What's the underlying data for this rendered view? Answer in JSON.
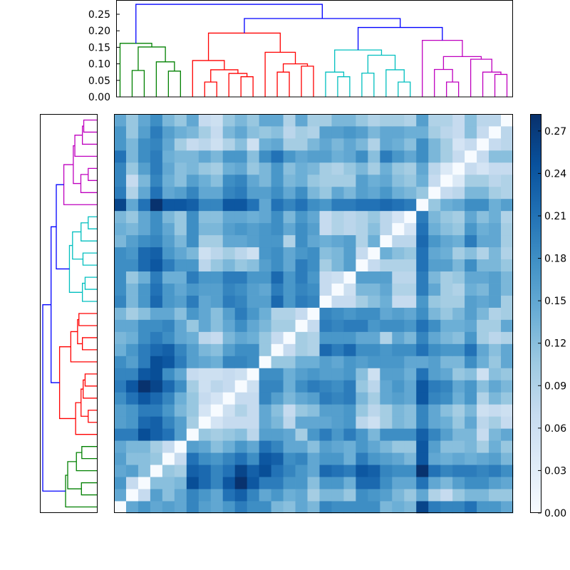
{
  "chart_data": {
    "type": "heatmap",
    "title": "",
    "description_kind": "clustered distance matrix with dendrograms",
    "n_leaves": 33,
    "colormap": "Blues",
    "vmin": 0.0,
    "vmax": 0.282,
    "colorbar_ticks": [
      "0.00",
      "0.03",
      "0.06",
      "0.09",
      "0.12",
      "0.15",
      "0.18",
      "0.21",
      "0.24",
      "0.27"
    ],
    "dendrogram_axis_ticks": [
      "0.00",
      "0.05",
      "0.10",
      "0.15",
      "0.20",
      "0.25"
    ],
    "dendrogram_ylim": [
      0,
      0.293
    ],
    "cluster_colors": {
      "green": "#008000",
      "red": "#ff0000",
      "cyan": "#00bfbf",
      "magenta": "#bf00bf",
      "above_threshold": "#0000ff"
    },
    "linkage": [
      [
        1,
        2,
        0.08,
        "green"
      ],
      [
        4,
        5,
        0.078,
        "green"
      ],
      [
        3,
        34,
        0.106,
        "green"
      ],
      [
        33,
        35,
        0.151,
        "green"
      ],
      [
        0,
        36,
        0.162,
        "green"
      ],
      [
        7,
        8,
        0.045,
        "red"
      ],
      [
        10,
        11,
        0.061,
        "red"
      ],
      [
        9,
        39,
        0.071,
        "red"
      ],
      [
        38,
        40,
        0.082,
        "red"
      ],
      [
        6,
        41,
        0.11,
        "red"
      ],
      [
        13,
        14,
        0.075,
        "red"
      ],
      [
        15,
        16,
        0.093,
        "red"
      ],
      [
        43,
        44,
        0.1,
        "red"
      ],
      [
        12,
        45,
        0.135,
        "red"
      ],
      [
        42,
        46,
        0.193,
        "red"
      ],
      [
        18,
        19,
        0.061,
        "cyan"
      ],
      [
        17,
        48,
        0.075,
        "cyan"
      ],
      [
        20,
        21,
        0.072,
        "cyan"
      ],
      [
        23,
        24,
        0.045,
        "cyan"
      ],
      [
        22,
        51,
        0.082,
        "cyan"
      ],
      [
        50,
        52,
        0.126,
        "cyan"
      ],
      [
        49,
        53,
        0.142,
        "cyan"
      ],
      [
        27,
        28,
        0.045,
        "magenta"
      ],
      [
        26,
        55,
        0.083,
        "magenta"
      ],
      [
        31,
        32,
        0.068,
        "magenta"
      ],
      [
        30,
        57,
        0.075,
        "magenta"
      ],
      [
        29,
        58,
        0.114,
        "magenta"
      ],
      [
        56,
        59,
        0.122,
        "magenta"
      ],
      [
        25,
        60,
        0.171,
        "magenta"
      ],
      [
        54,
        61,
        0.21,
        "above_threshold"
      ],
      [
        47,
        62,
        0.237,
        "above_threshold"
      ],
      [
        37,
        63,
        0.28,
        "above_threshold"
      ]
    ],
    "matrix": [
      [
        0,
        0.15,
        0.17,
        0.15,
        0.16,
        0.15,
        0.19,
        0.16,
        0.15,
        0.17,
        0.2,
        0.18,
        0.18,
        0.13,
        0.12,
        0.15,
        0.13,
        0.19,
        0.18,
        0.18,
        0.18,
        0.18,
        0.13,
        0.14,
        0.13,
        0.26,
        0.2,
        0.19,
        0.19,
        0.21,
        0.17,
        0.17,
        0.15
      ],
      [
        0.15,
        0,
        0.07,
        0.16,
        0.12,
        0.15,
        0.19,
        0.17,
        0.15,
        0.21,
        0.23,
        0.19,
        0.15,
        0.17,
        0.14,
        0.15,
        0.1,
        0.13,
        0.13,
        0.11,
        0.18,
        0.17,
        0.16,
        0.13,
        0.11,
        0.15,
        0.09,
        0.07,
        0.11,
        0.13,
        0.13,
        0.11,
        0.11
      ],
      [
        0.17,
        0.07,
        0,
        0.12,
        0.12,
        0.13,
        0.25,
        0.22,
        0.19,
        0.24,
        0.28,
        0.24,
        0.2,
        0.2,
        0.17,
        0.17,
        0.12,
        0.17,
        0.17,
        0.14,
        0.22,
        0.22,
        0.18,
        0.15,
        0.15,
        0.21,
        0.15,
        0.13,
        0.16,
        0.18,
        0.18,
        0.16,
        0.15
      ],
      [
        0.15,
        0.16,
        0.12,
        0,
        0.11,
        0.1,
        0.23,
        0.22,
        0.19,
        0.21,
        0.26,
        0.23,
        0.25,
        0.21,
        0.19,
        0.17,
        0.15,
        0.22,
        0.21,
        0.2,
        0.24,
        0.23,
        0.19,
        0.18,
        0.18,
        0.28,
        0.21,
        0.19,
        0.2,
        0.2,
        0.19,
        0.2,
        0.18
      ],
      [
        0.16,
        0.12,
        0.12,
        0.11,
        0,
        0.07,
        0.21,
        0.18,
        0.17,
        0.19,
        0.21,
        0.18,
        0.24,
        0.23,
        0.18,
        0.19,
        0.15,
        0.17,
        0.17,
        0.14,
        0.2,
        0.17,
        0.16,
        0.15,
        0.13,
        0.24,
        0.15,
        0.14,
        0.15,
        0.14,
        0.15,
        0.16,
        0.13
      ],
      [
        0.15,
        0.13,
        0.13,
        0.1,
        0.07,
        0,
        0.16,
        0.15,
        0.12,
        0.14,
        0.17,
        0.15,
        0.21,
        0.19,
        0.15,
        0.15,
        0.12,
        0.16,
        0.15,
        0.14,
        0.17,
        0.15,
        0.13,
        0.11,
        0.11,
        0.24,
        0.16,
        0.12,
        0.12,
        0.13,
        0.1,
        0.14,
        0.11
      ],
      [
        0.2,
        0.2,
        0.25,
        0.23,
        0.21,
        0.16,
        0,
        0.11,
        0.1,
        0.11,
        0.12,
        0.08,
        0.16,
        0.16,
        0.15,
        0.1,
        0.17,
        0.2,
        0.17,
        0.2,
        0.17,
        0.13,
        0.18,
        0.18,
        0.18,
        0.23,
        0.19,
        0.16,
        0.13,
        0.13,
        0.07,
        0.13,
        0.15
      ],
      [
        0.16,
        0.17,
        0.22,
        0.23,
        0.19,
        0.16,
        0.1,
        0,
        0.05,
        0.07,
        0.07,
        0.07,
        0.15,
        0.13,
        0.08,
        0.15,
        0.15,
        0.15,
        0.16,
        0.17,
        0.08,
        0.06,
        0.1,
        0.13,
        0.12,
        0.19,
        0.15,
        0.14,
        0.11,
        0.15,
        0.08,
        0.1,
        0.07
      ],
      [
        0.16,
        0.17,
        0.2,
        0.2,
        0.17,
        0.13,
        0.11,
        0.05,
        0,
        0.06,
        0.09,
        0.07,
        0.15,
        0.12,
        0.07,
        0.11,
        0.12,
        0.16,
        0.16,
        0.17,
        0.11,
        0.08,
        0.1,
        0.13,
        0.12,
        0.19,
        0.15,
        0.12,
        0.1,
        0.13,
        0.06,
        0.07,
        0.06
      ],
      [
        0.18,
        0.21,
        0.24,
        0.22,
        0.19,
        0.14,
        0.11,
        0.07,
        0.05,
        0,
        0.07,
        0.07,
        0.19,
        0.16,
        0.13,
        0.15,
        0.16,
        0.2,
        0.19,
        0.2,
        0.13,
        0.1,
        0.15,
        0.16,
        0.15,
        0.24,
        0.19,
        0.18,
        0.14,
        0.17,
        0.09,
        0.13,
        0.11
      ],
      [
        0.2,
        0.24,
        0.28,
        0.26,
        0.22,
        0.18,
        0.1,
        0.06,
        0.08,
        0.07,
        0,
        0.06,
        0.19,
        0.19,
        0.14,
        0.18,
        0.2,
        0.19,
        0.18,
        0.2,
        0.11,
        0.08,
        0.15,
        0.17,
        0.15,
        0.24,
        0.2,
        0.19,
        0.15,
        0.17,
        0.12,
        0.15,
        0.13
      ],
      [
        0.19,
        0.19,
        0.24,
        0.25,
        0.18,
        0.15,
        0.07,
        0.06,
        0.06,
        0.07,
        0.06,
        0,
        0.18,
        0.18,
        0.14,
        0.16,
        0.17,
        0.16,
        0.16,
        0.17,
        0.12,
        0.06,
        0.16,
        0.16,
        0.14,
        0.21,
        0.16,
        0.15,
        0.11,
        0.12,
        0.06,
        0.12,
        0.11
      ],
      [
        0.18,
        0.16,
        0.2,
        0.25,
        0.24,
        0.2,
        0.16,
        0.15,
        0.14,
        0.19,
        0.19,
        0.18,
        0,
        0.11,
        0.11,
        0.14,
        0.14,
        0.16,
        0.15,
        0.17,
        0.16,
        0.17,
        0.17,
        0.17,
        0.15,
        0.15,
        0.16,
        0.13,
        0.13,
        0.18,
        0.14,
        0.11,
        0.15
      ],
      [
        0.14,
        0.17,
        0.2,
        0.22,
        0.23,
        0.19,
        0.16,
        0.13,
        0.12,
        0.16,
        0.18,
        0.18,
        0.11,
        0,
        0.07,
        0.1,
        0.09,
        0.22,
        0.2,
        0.22,
        0.18,
        0.18,
        0.17,
        0.18,
        0.18,
        0.21,
        0.18,
        0.17,
        0.17,
        0.21,
        0.15,
        0.12,
        0.15
      ],
      [
        0.13,
        0.14,
        0.18,
        0.2,
        0.18,
        0.15,
        0.14,
        0.08,
        0.07,
        0.13,
        0.15,
        0.14,
        0.11,
        0.07,
        0,
        0.1,
        0.09,
        0.17,
        0.17,
        0.17,
        0.15,
        0.15,
        0.09,
        0.15,
        0.13,
        0.19,
        0.15,
        0.13,
        0.12,
        0.17,
        0.1,
        0.08,
        0.09
      ],
      [
        0.15,
        0.15,
        0.18,
        0.18,
        0.19,
        0.15,
        0.11,
        0.15,
        0.12,
        0.15,
        0.18,
        0.15,
        0.13,
        0.1,
        0.1,
        0,
        0.07,
        0.2,
        0.19,
        0.2,
        0.2,
        0.17,
        0.18,
        0.18,
        0.17,
        0.21,
        0.18,
        0.14,
        0.14,
        0.15,
        0.1,
        0.1,
        0.15
      ],
      [
        0.13,
        0.1,
        0.12,
        0.15,
        0.15,
        0.12,
        0.17,
        0.15,
        0.12,
        0.16,
        0.2,
        0.17,
        0.14,
        0.09,
        0.09,
        0.07,
        0,
        0.19,
        0.18,
        0.17,
        0.18,
        0.18,
        0.15,
        0.16,
        0.15,
        0.18,
        0.13,
        0.11,
        0.13,
        0.16,
        0.13,
        0.09,
        0.1
      ],
      [
        0.19,
        0.13,
        0.17,
        0.22,
        0.17,
        0.16,
        0.2,
        0.15,
        0.16,
        0.2,
        0.19,
        0.16,
        0.16,
        0.22,
        0.17,
        0.2,
        0.19,
        0,
        0.07,
        0.07,
        0.1,
        0.12,
        0.14,
        0.07,
        0.07,
        0.17,
        0.11,
        0.1,
        0.1,
        0.16,
        0.15,
        0.16,
        0.1
      ],
      [
        0.18,
        0.13,
        0.17,
        0.21,
        0.17,
        0.15,
        0.17,
        0.16,
        0.16,
        0.19,
        0.18,
        0.16,
        0.15,
        0.2,
        0.17,
        0.19,
        0.18,
        0.07,
        0,
        0.06,
        0.13,
        0.13,
        0.15,
        0.09,
        0.09,
        0.2,
        0.15,
        0.1,
        0.09,
        0.14,
        0.13,
        0.16,
        0.13
      ],
      [
        0.18,
        0.11,
        0.14,
        0.2,
        0.14,
        0.14,
        0.2,
        0.17,
        0.17,
        0.2,
        0.2,
        0.17,
        0.17,
        0.22,
        0.17,
        0.2,
        0.17,
        0.07,
        0.06,
        0,
        0.16,
        0.16,
        0.16,
        0.08,
        0.08,
        0.2,
        0.13,
        0.1,
        0.11,
        0.15,
        0.15,
        0.16,
        0.13
      ],
      [
        0.18,
        0.18,
        0.22,
        0.24,
        0.2,
        0.17,
        0.17,
        0.08,
        0.11,
        0.13,
        0.11,
        0.12,
        0.16,
        0.18,
        0.15,
        0.2,
        0.18,
        0.1,
        0.13,
        0.16,
        0,
        0.07,
        0.09,
        0.09,
        0.09,
        0.21,
        0.16,
        0.16,
        0.13,
        0.18,
        0.13,
        0.13,
        0.11
      ],
      [
        0.18,
        0.17,
        0.22,
        0.23,
        0.17,
        0.15,
        0.13,
        0.06,
        0.08,
        0.1,
        0.08,
        0.06,
        0.17,
        0.18,
        0.15,
        0.17,
        0.18,
        0.12,
        0.13,
        0.16,
        0.07,
        0,
        0.14,
        0.12,
        0.11,
        0.21,
        0.15,
        0.14,
        0.1,
        0.12,
        0.09,
        0.13,
        0.09
      ],
      [
        0.13,
        0.16,
        0.18,
        0.19,
        0.16,
        0.13,
        0.18,
        0.1,
        0.1,
        0.15,
        0.15,
        0.16,
        0.17,
        0.17,
        0.09,
        0.18,
        0.15,
        0.14,
        0.15,
        0.16,
        0.09,
        0.14,
        0,
        0.08,
        0.08,
        0.22,
        0.17,
        0.15,
        0.14,
        0.2,
        0.15,
        0.15,
        0.1
      ],
      [
        0.14,
        0.13,
        0.15,
        0.18,
        0.15,
        0.11,
        0.18,
        0.13,
        0.13,
        0.16,
        0.17,
        0.16,
        0.17,
        0.18,
        0.15,
        0.18,
        0.16,
        0.07,
        0.09,
        0.08,
        0.09,
        0.12,
        0.08,
        0,
        0.05,
        0.21,
        0.14,
        0.12,
        0.11,
        0.17,
        0.14,
        0.15,
        0.1
      ],
      [
        0.13,
        0.11,
        0.15,
        0.18,
        0.13,
        0.11,
        0.18,
        0.12,
        0.12,
        0.15,
        0.15,
        0.14,
        0.15,
        0.18,
        0.13,
        0.17,
        0.15,
        0.07,
        0.09,
        0.08,
        0.09,
        0.11,
        0.08,
        0.05,
        0,
        0.2,
        0.13,
        0.11,
        0.1,
        0.15,
        0.12,
        0.14,
        0.09
      ],
      [
        0.26,
        0.15,
        0.21,
        0.28,
        0.24,
        0.24,
        0.23,
        0.19,
        0.19,
        0.24,
        0.24,
        0.21,
        0.15,
        0.21,
        0.19,
        0.21,
        0.18,
        0.17,
        0.2,
        0.2,
        0.21,
        0.21,
        0.22,
        0.21,
        0.2,
        0,
        0.11,
        0.14,
        0.15,
        0.18,
        0.18,
        0.14,
        0.16
      ],
      [
        0.2,
        0.09,
        0.15,
        0.21,
        0.15,
        0.16,
        0.19,
        0.15,
        0.15,
        0.19,
        0.2,
        0.16,
        0.16,
        0.18,
        0.15,
        0.18,
        0.13,
        0.11,
        0.15,
        0.13,
        0.16,
        0.15,
        0.17,
        0.14,
        0.13,
        0.11,
        0,
        0.07,
        0.08,
        0.13,
        0.13,
        0.1,
        0.09
      ],
      [
        0.19,
        0.07,
        0.13,
        0.19,
        0.14,
        0.12,
        0.16,
        0.14,
        0.12,
        0.18,
        0.19,
        0.15,
        0.13,
        0.17,
        0.13,
        0.14,
        0.11,
        0.1,
        0.1,
        0.1,
        0.16,
        0.14,
        0.15,
        0.12,
        0.11,
        0.14,
        0.07,
        0,
        0.04,
        0.1,
        0.1,
        0.08,
        0.09
      ],
      [
        0.19,
        0.11,
        0.16,
        0.2,
        0.15,
        0.12,
        0.13,
        0.11,
        0.1,
        0.14,
        0.15,
        0.11,
        0.13,
        0.17,
        0.12,
        0.14,
        0.13,
        0.1,
        0.09,
        0.11,
        0.13,
        0.1,
        0.14,
        0.11,
        0.1,
        0.15,
        0.08,
        0.04,
        0,
        0.07,
        0.05,
        0.07,
        0.07
      ],
      [
        0.21,
        0.13,
        0.18,
        0.2,
        0.14,
        0.13,
        0.13,
        0.15,
        0.13,
        0.17,
        0.17,
        0.12,
        0.18,
        0.21,
        0.17,
        0.15,
        0.16,
        0.16,
        0.14,
        0.15,
        0.18,
        0.12,
        0.2,
        0.17,
        0.15,
        0.18,
        0.13,
        0.1,
        0.07,
        0,
        0.07,
        0.12,
        0.12
      ],
      [
        0.17,
        0.13,
        0.18,
        0.19,
        0.15,
        0.1,
        0.07,
        0.08,
        0.06,
        0.09,
        0.12,
        0.06,
        0.14,
        0.15,
        0.1,
        0.1,
        0.13,
        0.15,
        0.13,
        0.15,
        0.13,
        0.09,
        0.15,
        0.14,
        0.12,
        0.18,
        0.13,
        0.1,
        0.05,
        0.07,
        0,
        0.07,
        0.08
      ],
      [
        0.17,
        0.11,
        0.16,
        0.2,
        0.16,
        0.14,
        0.13,
        0.1,
        0.07,
        0.13,
        0.15,
        0.12,
        0.11,
        0.12,
        0.08,
        0.1,
        0.09,
        0.16,
        0.16,
        0.17,
        0.16,
        0.13,
        0.15,
        0.15,
        0.14,
        0.14,
        0.1,
        0.08,
        0.07,
        0.12,
        0.07,
        0,
        0.08
      ],
      [
        0.15,
        0.11,
        0.15,
        0.18,
        0.13,
        0.11,
        0.15,
        0.07,
        0.06,
        0.11,
        0.13,
        0.11,
        0.15,
        0.15,
        0.09,
        0.15,
        0.1,
        0.1,
        0.13,
        0.13,
        0.11,
        0.09,
        0.1,
        0.1,
        0.09,
        0.16,
        0.09,
        0.09,
        0.07,
        0.12,
        0.08,
        0.08,
        0
      ]
    ]
  }
}
